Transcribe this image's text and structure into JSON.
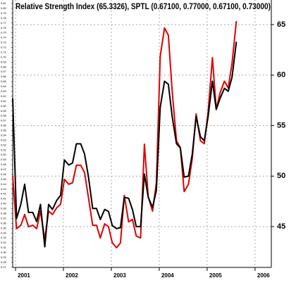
{
  "chart_data": {
    "type": "line",
    "title": "Relative Strength Index (65.3326), SPTL (0.67100, 0.77000, 0.67100, 0.73000)",
    "x": [
      2000.94,
      2001.02,
      2001.11,
      2001.19,
      2001.27,
      2001.36,
      2001.44,
      2001.52,
      2001.61,
      2001.69,
      2001.77,
      2001.86,
      2001.94,
      2002.02,
      2002.11,
      2002.19,
      2002.27,
      2002.36,
      2002.44,
      2002.52,
      2002.61,
      2002.69,
      2002.77,
      2002.86,
      2002.94,
      2003.02,
      2003.11,
      2003.19,
      2003.27,
      2003.36,
      2003.44,
      2003.52,
      2003.61,
      2003.69,
      2003.77,
      2003.86,
      2003.94,
      2004.02,
      2004.11,
      2004.19,
      2004.27,
      2004.36,
      2004.44,
      2004.52,
      2004.61,
      2004.69,
      2004.77,
      2004.86,
      2004.94,
      2005.02,
      2005.11,
      2005.19,
      2005.27,
      2005.36,
      2005.44,
      2005.52,
      2005.61
    ],
    "series": [
      {
        "color": "#e00000",
        "axis": "y2",
        "values": [
          0.457,
          0.349,
          0.356,
          0.378,
          0.353,
          0.356,
          0.349,
          0.385,
          0.327,
          0.385,
          0.378,
          0.392,
          0.399,
          0.45,
          0.44,
          0.443,
          0.479,
          0.479,
          0.464,
          0.414,
          0.356,
          0.356,
          0.33,
          0.359,
          0.353,
          0.32,
          0.31,
          0.32,
          0.417,
          0.363,
          0.368,
          0.334,
          0.33,
          0.522,
          0.414,
          0.385,
          0.443,
          0.702,
          0.76,
          0.745,
          0.63,
          0.529,
          0.515,
          0.425,
          0.44,
          0.493,
          0.584,
          0.529,
          0.523,
          0.587,
          0.699,
          0.594,
          0.627,
          0.651,
          0.637,
          0.688,
          0.774
        ]
      },
      {
        "color": "#000000",
        "values": [
          57.7,
          45.8,
          47.2,
          49.2,
          46.4,
          46.4,
          45.5,
          47.2,
          43.0,
          47.2,
          46.7,
          47.6,
          48.1,
          51.6,
          51.1,
          51.3,
          53.2,
          53.2,
          52.2,
          50.0,
          46.8,
          46.8,
          45.7,
          46.7,
          46.5,
          45.1,
          44.8,
          44.9,
          47.9,
          47.8,
          46.7,
          45.0,
          45.0,
          50.2,
          47.9,
          46.9,
          48.6,
          56.8,
          59.4,
          59.1,
          55.9,
          53.2,
          52.8,
          49.9,
          50.0,
          52.2,
          55.9,
          53.9,
          53.5,
          55.9,
          59.4,
          56.6,
          57.7,
          58.7,
          58.4,
          59.8,
          63.3
        ]
      }
    ],
    "xlim": [
      2000.94,
      2006.34
    ],
    "xticks": [
      2001,
      2002,
      2003,
      2004,
      2005,
      2006
    ],
    "ylim": [
      40.96,
      67.44
    ],
    "yticks": [
      45,
      50,
      55,
      60,
      65
    ],
    "y2lim": [
      0.2697,
      0.8172
    ],
    "y2ticks": [
      0.81,
      {
        "value": 0.8,
        "label": "0.80"
      },
      0.79,
      0.78,
      0.77,
      0.76,
      0.75,
      0.74,
      0.73,
      0.72,
      0.71,
      {
        "value": 0.7,
        "label": "0.70"
      },
      0.69,
      0.68,
      0.67,
      0.66,
      0.65,
      0.64,
      0.63,
      0.62,
      0.61,
      {
        "value": 0.6,
        "label": "0.60"
      },
      0.59,
      0.58,
      0.57,
      0.56,
      0.55,
      0.54,
      0.53,
      0.52,
      0.51,
      {
        "value": 0.5,
        "label": "0.50"
      },
      0.49,
      0.48,
      0.47,
      0.46,
      0.45,
      0.44,
      0.43,
      0.42,
      0.41,
      {
        "value": 0.4,
        "label": "0.40"
      },
      0.39,
      0.38,
      0.37,
      0.36,
      0.35,
      0.34,
      0.33,
      0.32,
      0.31,
      {
        "value": 0.3,
        "label": "0.30"
      },
      0.29,
      0.28,
      0.27
    ],
    "grid": true
  }
}
